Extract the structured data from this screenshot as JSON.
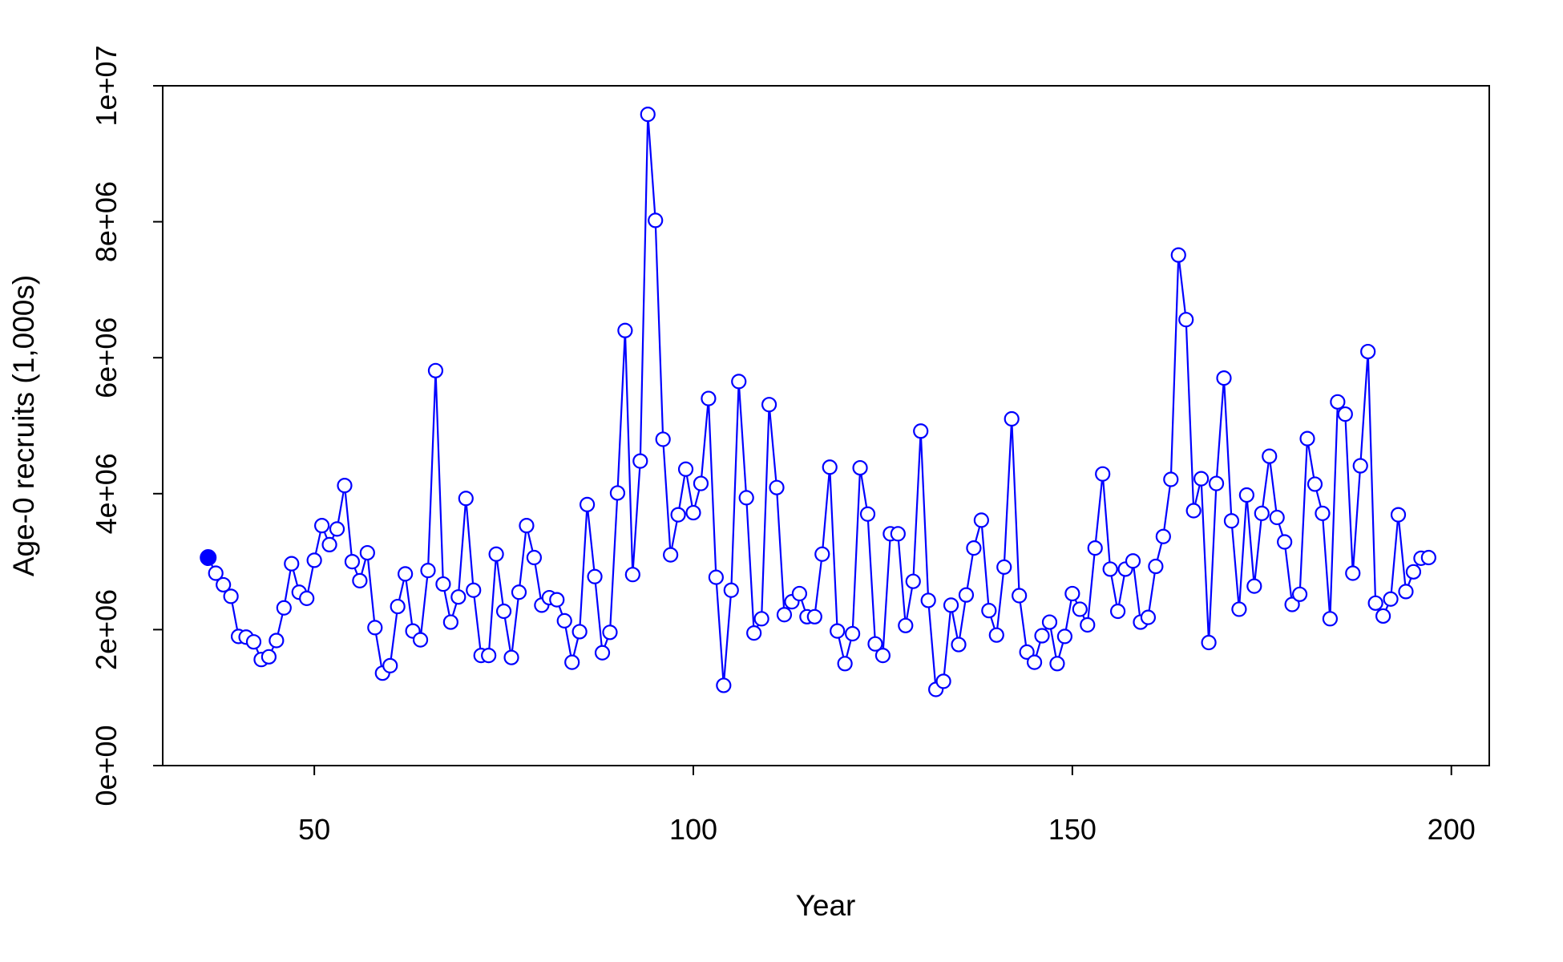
{
  "chart_data": {
    "type": "line",
    "title": "",
    "xlabel": "Year",
    "ylabel": "Age-0 recruits (1,000s)",
    "xlim": [
      30,
      205
    ],
    "ylim": [
      0,
      10000000
    ],
    "xticks": [
      50,
      100,
      150,
      200
    ],
    "xtick_labels": [
      "50",
      "100",
      "150",
      "200"
    ],
    "yticks": [
      0,
      2000000,
      4000000,
      6000000,
      8000000,
      10000000
    ],
    "ytick_labels": [
      "0e+00",
      "2e+06",
      "4e+06",
      "6e+06",
      "8e+06",
      "1e+07"
    ],
    "grid": false,
    "legend": "none",
    "series": [
      {
        "color": "#0000ff",
        "marker": "open-circle",
        "first_point_marker": "filled-circle",
        "x": [
          36,
          37,
          38,
          39,
          40,
          41,
          42,
          43,
          44,
          45,
          46,
          47,
          48,
          49,
          50,
          51,
          52,
          53,
          54,
          55,
          56,
          57,
          58,
          59,
          60,
          61,
          62,
          63,
          64,
          65,
          66,
          67,
          68,
          69,
          70,
          71,
          72,
          73,
          74,
          75,
          76,
          77,
          78,
          79,
          80,
          81,
          82,
          83,
          84,
          85,
          86,
          87,
          88,
          89,
          90,
          91,
          92,
          93,
          94,
          95,
          96,
          97,
          98,
          99,
          100,
          101,
          102,
          103,
          104,
          105,
          106,
          107,
          108,
          109,
          110,
          111,
          112,
          113,
          114,
          115,
          116,
          117,
          118,
          119,
          120,
          121,
          122,
          123,
          124,
          125,
          126,
          127,
          128,
          129,
          130,
          131,
          132,
          133,
          134,
          135,
          136,
          137,
          138,
          139,
          140,
          141,
          142,
          143,
          144,
          145,
          146,
          147,
          148,
          149,
          150,
          151,
          152,
          153,
          154,
          155,
          156,
          157,
          158,
          159,
          160,
          161,
          162,
          163,
          164,
          165,
          166,
          167,
          168,
          169,
          170,
          171,
          172,
          173,
          174,
          175,
          176,
          177,
          178,
          179,
          180,
          181,
          182,
          183,
          184,
          185,
          186,
          187,
          188,
          189,
          190,
          191,
          192,
          193,
          194,
          195,
          196,
          197
        ],
        "y": [
          3060000,
          2830000,
          2660000,
          2490000,
          1900000,
          1890000,
          1820000,
          1560000,
          1600000,
          1840000,
          2320000,
          2970000,
          2550000,
          2460000,
          3020000,
          3530000,
          3250000,
          3480000,
          4120000,
          3000000,
          2720000,
          3130000,
          2030000,
          1360000,
          1470000,
          2340000,
          2820000,
          1980000,
          1850000,
          2870000,
          5810000,
          2670000,
          2110000,
          2480000,
          3930000,
          2580000,
          1620000,
          1620000,
          3110000,
          2270000,
          1590000,
          2550000,
          3530000,
          3060000,
          2360000,
          2470000,
          2440000,
          2130000,
          1520000,
          1970000,
          3840000,
          2780000,
          1660000,
          1960000,
          4010000,
          6400000,
          2810000,
          4480000,
          9580000,
          8020000,
          4800000,
          3100000,
          3690000,
          4360000,
          3720000,
          4150000,
          5400000,
          2770000,
          1180000,
          2580000,
          5650000,
          3940000,
          1950000,
          2160000,
          5310000,
          4090000,
          2220000,
          2410000,
          2530000,
          2190000,
          2190000,
          3110000,
          4390000,
          1980000,
          1500000,
          1940000,
          4380000,
          3700000,
          1790000,
          1620000,
          3410000,
          3410000,
          2060000,
          2710000,
          4920000,
          2430000,
          1120000,
          1240000,
          2360000,
          1780000,
          2510000,
          3200000,
          3610000,
          2280000,
          1920000,
          2920000,
          5100000,
          2500000,
          1670000,
          1520000,
          1910000,
          2110000,
          1500000,
          1900000,
          2530000,
          2300000,
          2070000,
          3200000,
          4290000,
          2890000,
          2270000,
          2890000,
          3010000,
          2110000,
          2180000,
          2930000,
          3370000,
          4210000,
          7510000,
          6560000,
          3750000,
          4220000,
          1810000,
          4150000,
          5700000,
          3600000,
          2300000,
          3980000,
          2640000,
          3710000,
          4550000,
          3650000,
          3290000,
          2370000,
          2520000,
          4810000,
          4140000,
          3710000,
          2160000,
          5350000,
          5170000,
          2830000,
          4410000,
          6090000,
          2390000,
          2200000,
          2450000,
          3690000,
          2560000,
          2850000,
          3050000,
          3060000
        ]
      }
    ]
  }
}
